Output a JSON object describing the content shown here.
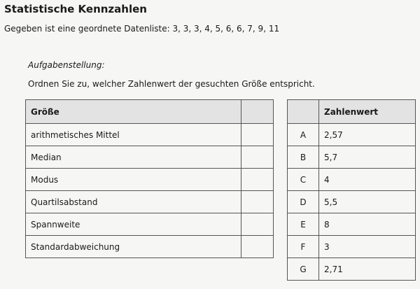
{
  "title": "Statistische Kennzahlen",
  "given": "Gegeben ist eine geordnete Datenliste: 3, 3, 3, 4, 5, 6, 6, 7, 9, 11",
  "task_label": "Aufgabenstellung:",
  "instruction": "Ordnen Sie zu, welcher Zahlenwert der gesuchten Größe entspricht.",
  "left_table": {
    "header": "Größe",
    "rows": [
      "arithmetisches Mittel",
      "Median",
      "Modus",
      "Quartilsabstand",
      "Spannweite",
      "Standardabweichung"
    ]
  },
  "right_table": {
    "header": "Zahlenwert",
    "rows": [
      {
        "letter": "A",
        "value": "2,57"
      },
      {
        "letter": "B",
        "value": "5,7"
      },
      {
        "letter": "C",
        "value": "4"
      },
      {
        "letter": "D",
        "value": "5,5"
      },
      {
        "letter": "E",
        "value": "8"
      },
      {
        "letter": "F",
        "value": "3"
      },
      {
        "letter": "G",
        "value": "2,71"
      }
    ]
  }
}
